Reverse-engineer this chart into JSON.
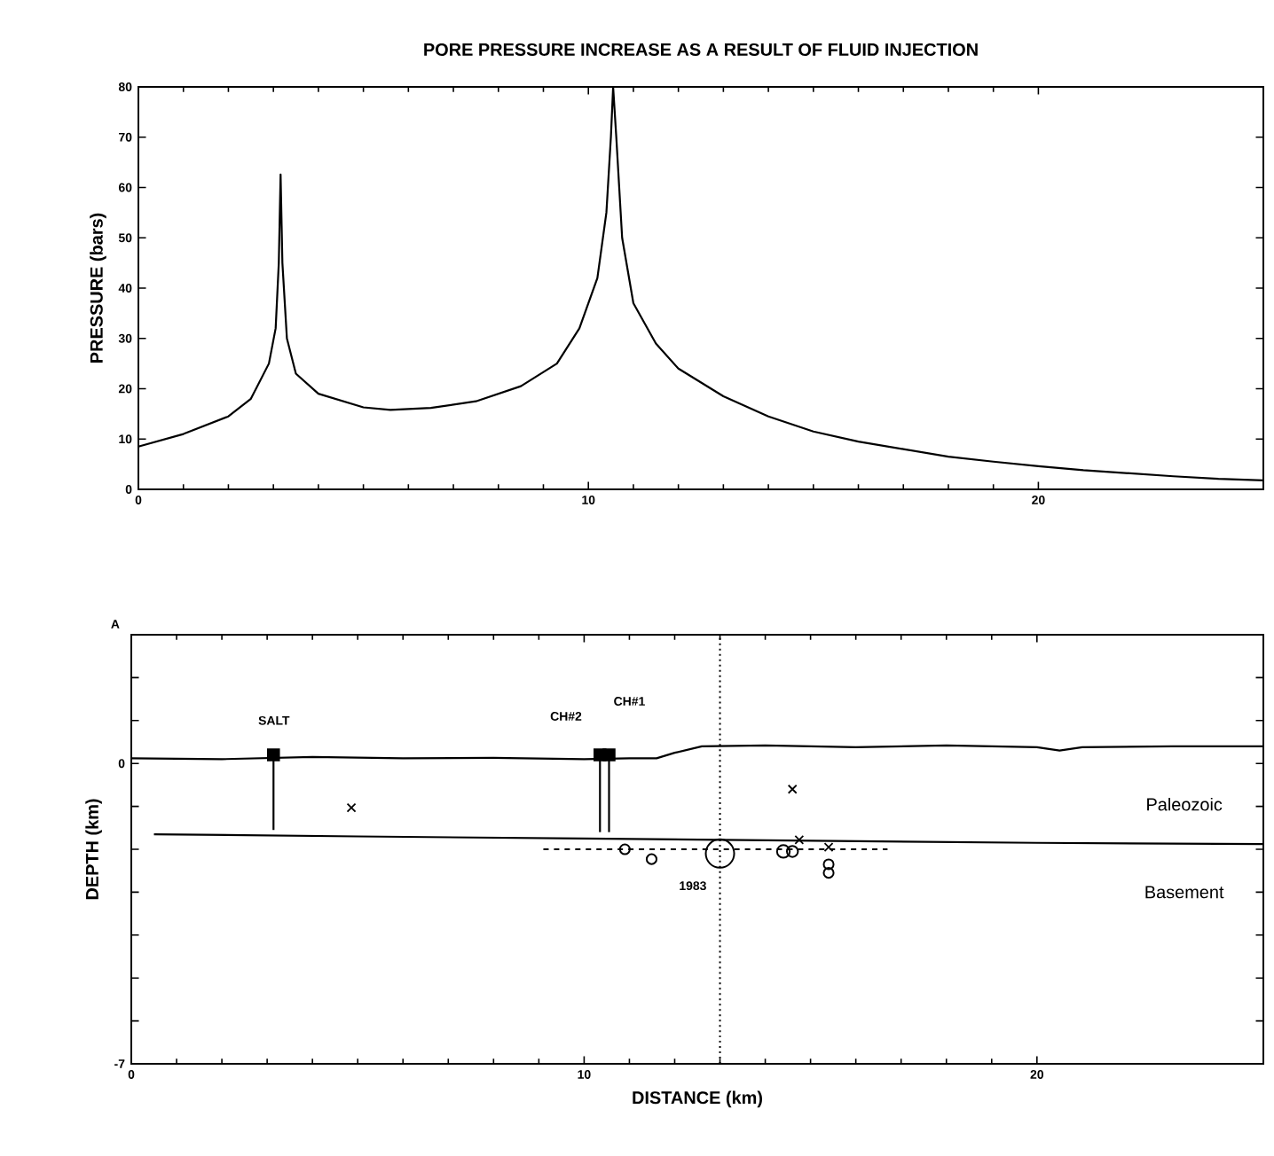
{
  "chart_data": [
    {
      "type": "line",
      "title": "PORE PRESSURE INCREASE AS A RESULT OF FLUID INJECTION",
      "ylabel": "PRESSURE  (bars)",
      "color": "#000000",
      "marker": "none",
      "x": [
        0,
        1,
        2,
        2.5,
        2.9,
        3.05,
        3.12,
        3.16,
        3.2,
        3.3,
        3.5,
        4,
        5,
        5.6,
        6.5,
        7.5,
        8.5,
        9.3,
        9.8,
        10.2,
        10.4,
        10.5,
        10.55,
        10.62,
        10.75,
        11,
        11.5,
        12,
        13,
        14,
        15,
        16,
        17,
        18,
        19,
        20,
        21,
        22,
        23,
        24,
        25
      ],
      "values": [
        8.5,
        11,
        14.5,
        18,
        25,
        32,
        45,
        62.6,
        45,
        30,
        23,
        19,
        16.3,
        15.8,
        16.2,
        17.5,
        20.5,
        25,
        32,
        42,
        55,
        70,
        80,
        70,
        50,
        37,
        29,
        24,
        18.5,
        14.5,
        11.5,
        9.5,
        8,
        6.5,
        5.5,
        4.6,
        3.8,
        3.2,
        2.6,
        2.1,
        1.8
      ],
      "xlim": [
        0,
        25
      ],
      "ylim": [
        0,
        80
      ],
      "xticks": [
        0,
        10,
        20
      ],
      "yticks": [
        0,
        10,
        20,
        30,
        40,
        50,
        60,
        70,
        80
      ]
    },
    {
      "type": "scatter",
      "xlabel": "DISTANCE  (km)",
      "ylabel": "DEPTH (km)",
      "xlim": [
        0,
        25
      ],
      "ylim": [
        -7,
        3
      ],
      "xticks": [
        0,
        10,
        20
      ],
      "yticks": [
        {
          "value": 3,
          "label": null
        },
        {
          "value": 2,
          "label": null
        },
        {
          "value": 1,
          "label": null
        },
        0,
        {
          "value": -1,
          "label": null
        },
        {
          "value": -2,
          "label": null
        },
        {
          "value": -3,
          "label": null
        },
        {
          "value": -4,
          "label": null
        },
        {
          "value": -5,
          "label": null
        },
        {
          "value": -6,
          "label": null
        },
        -7
      ],
      "series": [
        {
          "type": "line",
          "color": "#000000",
          "marker": "none",
          "x": [
            0,
            2,
            4,
            6,
            8,
            10,
            11,
            11.6,
            12,
            12.6,
            14,
            16,
            18,
            20,
            20.5,
            21,
            23,
            25
          ],
          "values": [
            0.12,
            0.1,
            0.15,
            0.12,
            0.13,
            0.1,
            0.12,
            0.12,
            0.25,
            0.4,
            0.42,
            0.38,
            0.42,
            0.38,
            0.3,
            0.38,
            0.4,
            0.4
          ]
        },
        {
          "type": "line",
          "color": "#000000",
          "marker": "none",
          "x": [
            0.5,
            5,
            10,
            15,
            20,
            25
          ],
          "values": [
            -1.65,
            -1.7,
            -1.75,
            -1.8,
            -1.85,
            -1.88
          ]
        },
        {
          "type": "line",
          "color": "#000000",
          "marker": "none",
          "line_style": "dashed",
          "x": [
            9.1,
            16.7
          ],
          "values": [
            -2.0,
            -2.0
          ]
        },
        {
          "type": "line",
          "color": "#000000",
          "marker": "none",
          "x": [
            3.14,
            3.14
          ],
          "values": [
            0.15,
            -1.55
          ]
        },
        {
          "type": "line",
          "color": "#000000",
          "marker": "none",
          "x": [
            10.35,
            10.35
          ],
          "values": [
            0.15,
            -1.6
          ]
        },
        {
          "type": "line",
          "color": "#000000",
          "marker": "none",
          "x": [
            10.55,
            10.55
          ],
          "values": [
            0.15,
            -1.6
          ]
        },
        {
          "type": "scatter",
          "color": "#000000",
          "marker": "square",
          "x": [
            3.14,
            10.35,
            10.55
          ],
          "values": [
            0.2,
            0.2,
            0.2
          ]
        },
        {
          "type": "scatter",
          "color": "#000000",
          "marker": "cross",
          "x": [
            4.86,
            14.6,
            14.75,
            15.4
          ],
          "values": [
            -1.03,
            -0.6,
            -1.78,
            -1.95
          ]
        },
        {
          "type": "bubble",
          "color": "#000000",
          "marker": "circle",
          "x": [
            10.9,
            11.49,
            13.0,
            14.4,
            14.6,
            15.4,
            15.4
          ],
          "values": [
            -2.0,
            -2.23,
            -2.1,
            -2.05,
            -2.05,
            -2.35,
            -2.55
          ],
          "sizes": [
            0.12,
            0.12,
            1,
            0.2,
            0.15,
            0.12,
            0.12
          ]
        }
      ],
      "ref_lines": [
        {
          "axis": "x",
          "value": 13,
          "line_style": "dotted"
        }
      ],
      "annotations": [
        "A",
        "SALT",
        "CH#2",
        "CH#1",
        "1983",
        "Paleozoic",
        "Basement"
      ]
    }
  ]
}
